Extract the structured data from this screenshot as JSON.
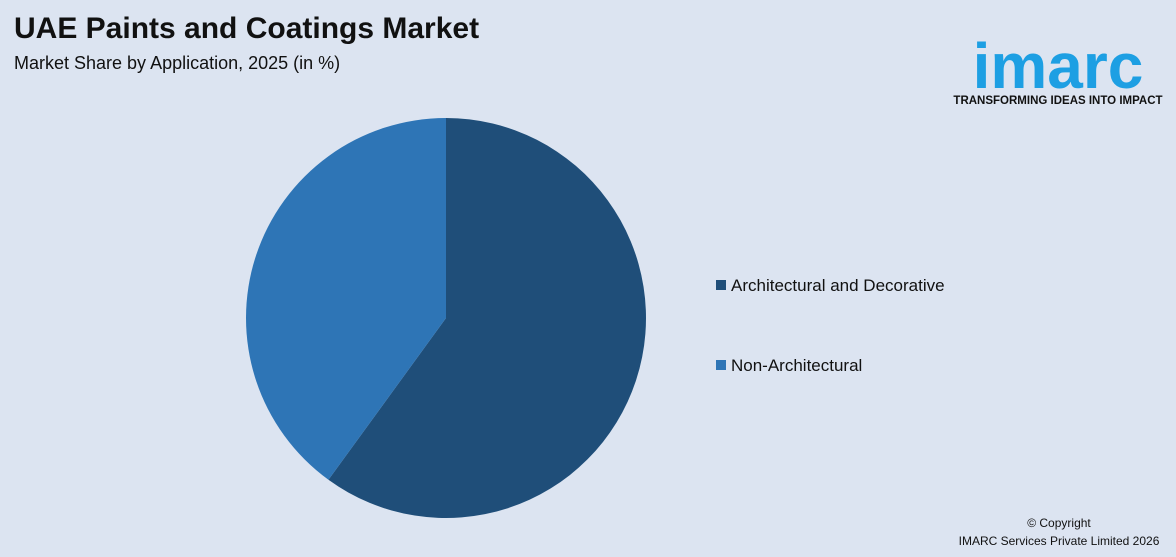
{
  "chart_data": {
    "type": "pie",
    "title": "UAE Paints and Coatings Market",
    "subtitle": "Market Share by Application, 2025 (in %)",
    "categories": [
      "Architectural and Decorative",
      "Non-Architectural"
    ],
    "values": [
      60,
      40
    ],
    "colors": [
      "#1f4e79",
      "#2e75b6"
    ],
    "legend": "right"
  },
  "logo": {
    "name": "imarc",
    "tagline": "TRANSFORMING IDEAS INTO IMPACT"
  },
  "footer": {
    "copyright": "© Copyright",
    "company": "IMARC Services Private Limited 2026"
  }
}
